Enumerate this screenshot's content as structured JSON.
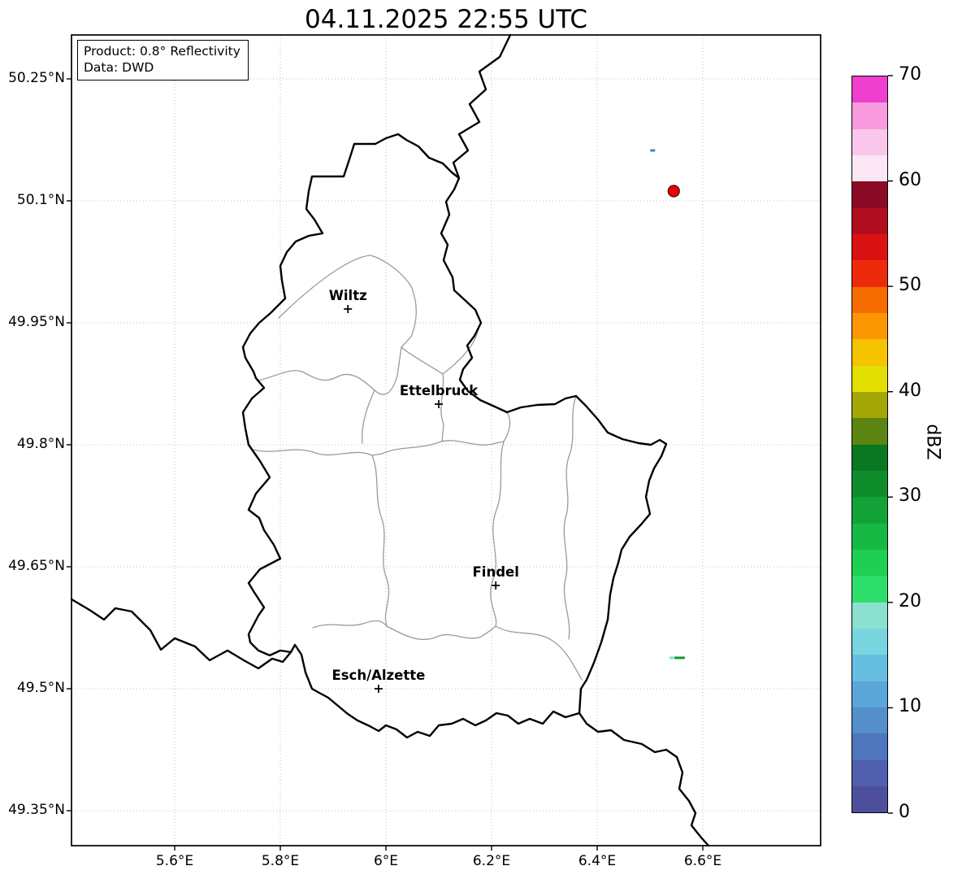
{
  "title": "04.11.2025 22:55 UTC",
  "info_box": {
    "product": "Product: 0.8° Reflectivity",
    "data": "Data: DWD"
  },
  "axes": {
    "x_ticks": [
      {
        "label": "5.6°E",
        "lon": 5.6
      },
      {
        "label": "5.8°E",
        "lon": 5.8
      },
      {
        "label": "6°E",
        "lon": 6.0
      },
      {
        "label": "6.2°E",
        "lon": 6.2
      },
      {
        "label": "6.4°E",
        "lon": 6.4
      },
      {
        "label": "6.6°E",
        "lon": 6.6
      }
    ],
    "y_ticks": [
      {
        "label": "50.25°N",
        "lat": 50.25
      },
      {
        "label": "50.1°N",
        "lat": 50.1
      },
      {
        "label": "49.95°N",
        "lat": 49.95
      },
      {
        "label": "49.8°N",
        "lat": 49.8
      },
      {
        "label": "49.65°N",
        "lat": 49.65
      },
      {
        "label": "49.5°N",
        "lat": 49.5
      },
      {
        "label": "49.35°N",
        "lat": 49.35
      }
    ]
  },
  "cities": [
    {
      "name": "Wiltz",
      "lon": 5.928,
      "lat": 49.967
    },
    {
      "name": "Ettelbruck",
      "lon": 6.1,
      "lat": 49.85
    },
    {
      "name": "Findel",
      "lon": 6.208,
      "lat": 49.627
    },
    {
      "name": "Esch/Alzette",
      "lon": 5.986,
      "lat": 49.5
    }
  ],
  "radar_echoes": {
    "cell_marker": {
      "lon": 6.545,
      "lat": 50.112,
      "fill": "#e8000b",
      "edge": "#550000"
    },
    "patches": [
      {
        "lon": 6.505,
        "lat": 50.162,
        "w": 6,
        "h": 3,
        "color": "#4a80c4"
      },
      {
        "lon": 6.541,
        "lat": 49.538,
        "w": 5,
        "h": 3,
        "color": "#7fd9d2"
      },
      {
        "lon": 6.556,
        "lat": 49.538,
        "w": 13,
        "h": 3,
        "color": "#0c9b33"
      }
    ]
  },
  "colorbar": {
    "label": "dBZ",
    "min": 0,
    "max": 70,
    "tick_values": [
      0,
      10,
      20,
      30,
      40,
      50,
      60,
      70
    ],
    "segment_step": 2.5,
    "colors_bottom_to_top": [
      "#4d4f9c",
      "#4f5fae",
      "#4f76bc",
      "#548ecb",
      "#5aa6d8",
      "#66bfe1",
      "#79d6e0",
      "#8ce0cf",
      "#2ede6a",
      "#1ecf53",
      "#18b845",
      "#12a238",
      "#0e8c2c",
      "#0a7722",
      "#5c8410",
      "#a3a607",
      "#e3df00",
      "#f6c300",
      "#fb9702",
      "#f76c01",
      "#ed2b0a",
      "#da1212",
      "#b30d20",
      "#8c0a26",
      "#fbe7f3",
      "#f9c7ea",
      "#f79ade",
      "#ee3fcf"
    ]
  }
}
